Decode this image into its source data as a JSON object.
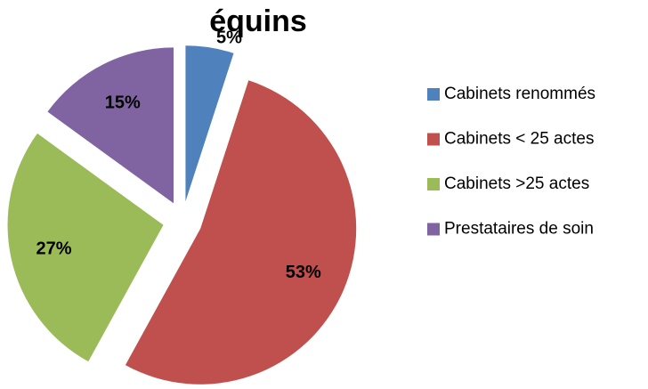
{
  "chart_data": {
    "type": "pie",
    "title": "équins",
    "categories": [
      "Cabinets renommés",
      "Cabinets < 25 actes",
      "Cabinets >25 actes",
      "Prestataires de soin"
    ],
    "values": [
      5,
      53,
      27,
      15
    ],
    "value_labels": [
      "5%",
      "53%",
      "27%",
      "15%"
    ],
    "colors": [
      "#4f81bd",
      "#c0504d",
      "#9bbb59",
      "#8064a2"
    ],
    "legend": "right"
  }
}
